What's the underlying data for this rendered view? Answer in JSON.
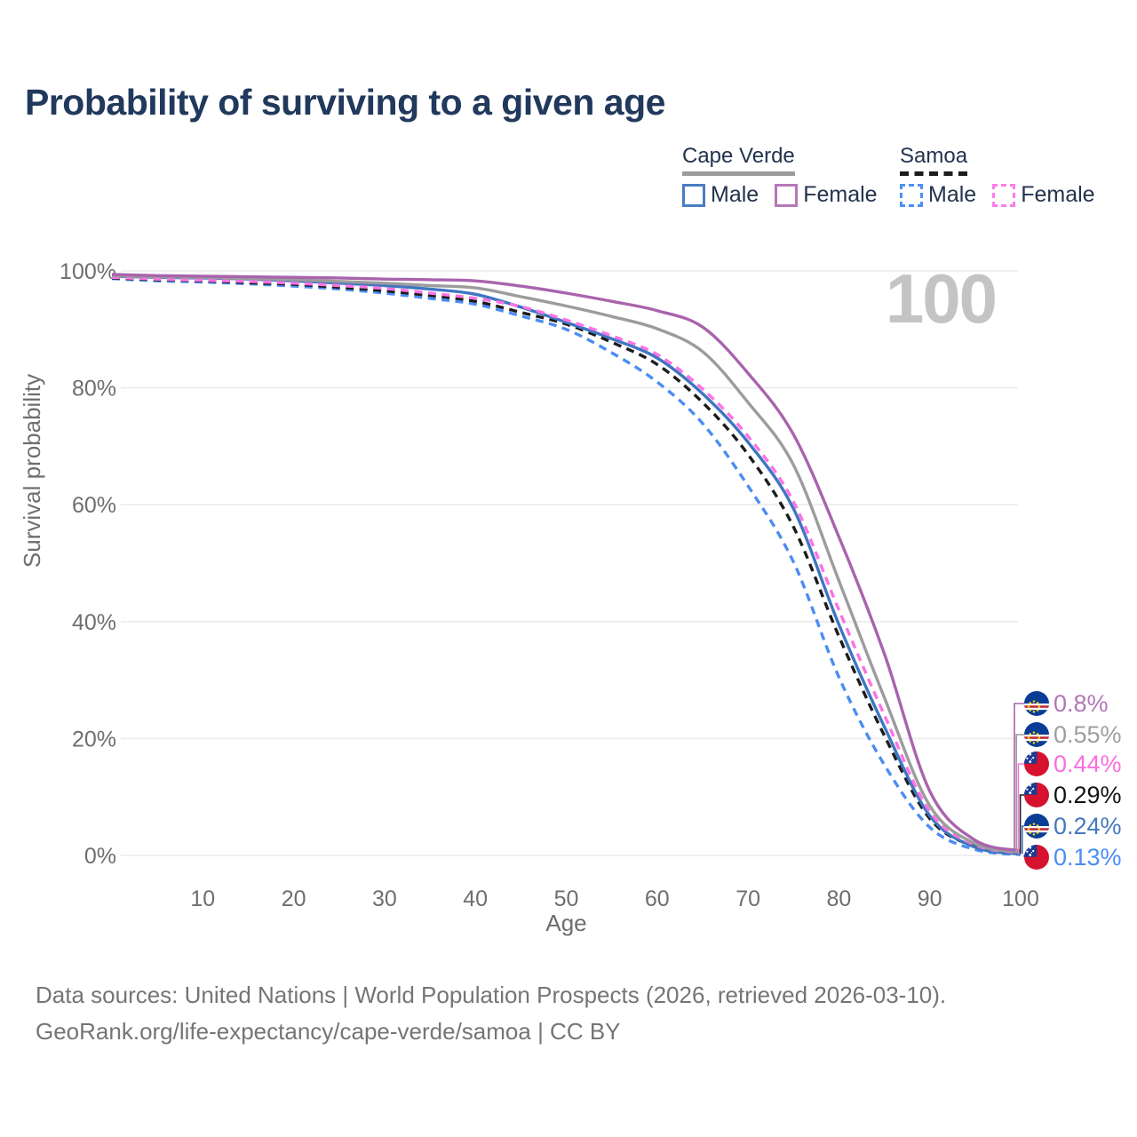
{
  "title": "Probability of surviving to a given age",
  "watermark": "100",
  "legend": {
    "groups": [
      {
        "id": "cape-verde",
        "label": "Cape Verde",
        "line_style": "solid",
        "line_color": "#9c9c9c",
        "items": [
          {
            "id": "cape-verde-male",
            "label": "Male",
            "swatch_color": "#4a7cc1",
            "swatch_style": "solid"
          },
          {
            "id": "cape-verde-female",
            "label": "Female",
            "swatch_color": "#b578b6",
            "swatch_style": "solid"
          }
        ]
      },
      {
        "id": "samoa",
        "label": "Samoa",
        "line_style": "dashed",
        "line_color": "#1c1c1c",
        "items": [
          {
            "id": "samoa-male",
            "label": "Male",
            "swatch_color": "#4d90f5",
            "swatch_style": "dashed"
          },
          {
            "id": "samoa-female",
            "label": "Female",
            "swatch_color": "#fb7deb",
            "swatch_style": "dashed"
          }
        ]
      }
    ]
  },
  "chart_data": {
    "type": "line",
    "title": "Probability of surviving to a given age",
    "xlabel": "Age",
    "ylabel": "Survival probability",
    "xlim": [
      0,
      100
    ],
    "ylim": [
      0,
      100
    ],
    "grid": "horizontal",
    "x_ticks": [
      10,
      20,
      30,
      40,
      50,
      60,
      70,
      80,
      90,
      100
    ],
    "y_ticks": [
      {
        "value": 0,
        "label": "0%"
      },
      {
        "value": 20,
        "label": "20%"
      },
      {
        "value": 40,
        "label": "40%"
      },
      {
        "value": 60,
        "label": "60%"
      },
      {
        "value": 80,
        "label": "80%"
      },
      {
        "value": 100,
        "label": "100%"
      }
    ],
    "x": [
      0,
      5,
      10,
      15,
      20,
      25,
      30,
      35,
      40,
      45,
      50,
      55,
      60,
      65,
      70,
      75,
      80,
      85,
      90,
      95,
      100
    ],
    "series": [
      {
        "id": "cape-verde-female",
        "name": "Cape Verde Female",
        "country": "Cape Verde",
        "sex": "female",
        "style": "solid",
        "color": "#a963ad",
        "flag": "cape-verde",
        "end_label": "0.8%",
        "end_value_pct": 0.8,
        "end_label_color": "#b277b6",
        "values": [
          99.4,
          99.2,
          99.1,
          99.0,
          98.9,
          98.8,
          98.6,
          98.5,
          98.3,
          97.4,
          96.2,
          94.8,
          93.2,
          90.4,
          82.5,
          72.0,
          54.5,
          34.5,
          11.0,
          2.6,
          0.8
        ]
      },
      {
        "id": "cape-verde-total",
        "name": "Cape Verde (both sexes)",
        "country": "Cape Verde",
        "sex": "both",
        "style": "solid",
        "color": "#9c9c9c",
        "flag": "cape-verde",
        "end_label": "0.55%",
        "end_value_pct": 0.55,
        "end_label_color": "#9e9e9e",
        "values": [
          99.2,
          99.0,
          98.9,
          98.7,
          98.5,
          98.2,
          97.9,
          97.5,
          97.1,
          95.6,
          94.0,
          92.2,
          90.1,
          86.2,
          77.5,
          66.8,
          47.0,
          27.0,
          8.5,
          2.0,
          0.55
        ]
      },
      {
        "id": "samoa-female",
        "name": "Samoa Female",
        "country": "Samoa",
        "sex": "female",
        "style": "dashed",
        "color": "#fb73e4",
        "flag": "samoa",
        "end_label": "0.44%",
        "end_value_pct": 0.44,
        "end_label_color": "#fb6ee0",
        "values": [
          98.9,
          98.6,
          98.4,
          98.2,
          97.9,
          97.5,
          97.0,
          96.2,
          95.3,
          93.9,
          91.6,
          88.9,
          85.7,
          79.8,
          71.7,
          60.5,
          42.0,
          24.0,
          7.5,
          1.8,
          0.44
        ]
      },
      {
        "id": "samoa-total",
        "name": "Samoa (both sexes)",
        "country": "Samoa",
        "sex": "both",
        "style": "dashed",
        "color": "#1c1c1c",
        "flag": "samoa",
        "end_label": "0.29%",
        "end_value_pct": 0.29,
        "end_label_color": "#141414",
        "values": [
          98.8,
          98.5,
          98.3,
          98.0,
          97.7,
          97.2,
          96.6,
          95.8,
          94.8,
          92.9,
          90.9,
          87.8,
          84.0,
          77.5,
          68.6,
          56.2,
          37.5,
          20.5,
          6.3,
          1.5,
          0.29
        ]
      },
      {
        "id": "cape-verde-male",
        "name": "Cape Verde Male",
        "country": "Cape Verde",
        "sex": "male",
        "style": "solid",
        "color": "#3f76c2",
        "flag": "cape-verde",
        "end_label": "0.24%",
        "end_value_pct": 0.24,
        "end_label_color": "#4678bd",
        "values": [
          99.1,
          98.9,
          98.8,
          98.6,
          98.3,
          97.9,
          97.5,
          96.9,
          96.0,
          93.8,
          91.2,
          88.4,
          85.1,
          79.0,
          70.7,
          59.3,
          39.5,
          22.0,
          6.8,
          1.4,
          0.24
        ]
      },
      {
        "id": "samoa-male",
        "name": "Samoa Male",
        "country": "Samoa",
        "sex": "male",
        "style": "dashed",
        "color": "#4b8df2",
        "flag": "samoa",
        "end_label": "0.13%",
        "end_value_pct": 0.13,
        "end_label_color": "#4b8df2",
        "values": [
          98.7,
          98.3,
          98.1,
          97.8,
          97.4,
          96.9,
          96.2,
          95.3,
          94.3,
          92.3,
          90.0,
          86.0,
          81.0,
          73.9,
          63.2,
          50.2,
          30.5,
          15.5,
          4.8,
          1.0,
          0.13
        ]
      }
    ]
  },
  "footer": {
    "line1": "Data sources: United Nations | World Population Prospects (2026, retrieved 2026-03-10).",
    "line2": "GeoRank.org/life-expectancy/cape-verde/samoa | CC BY"
  }
}
